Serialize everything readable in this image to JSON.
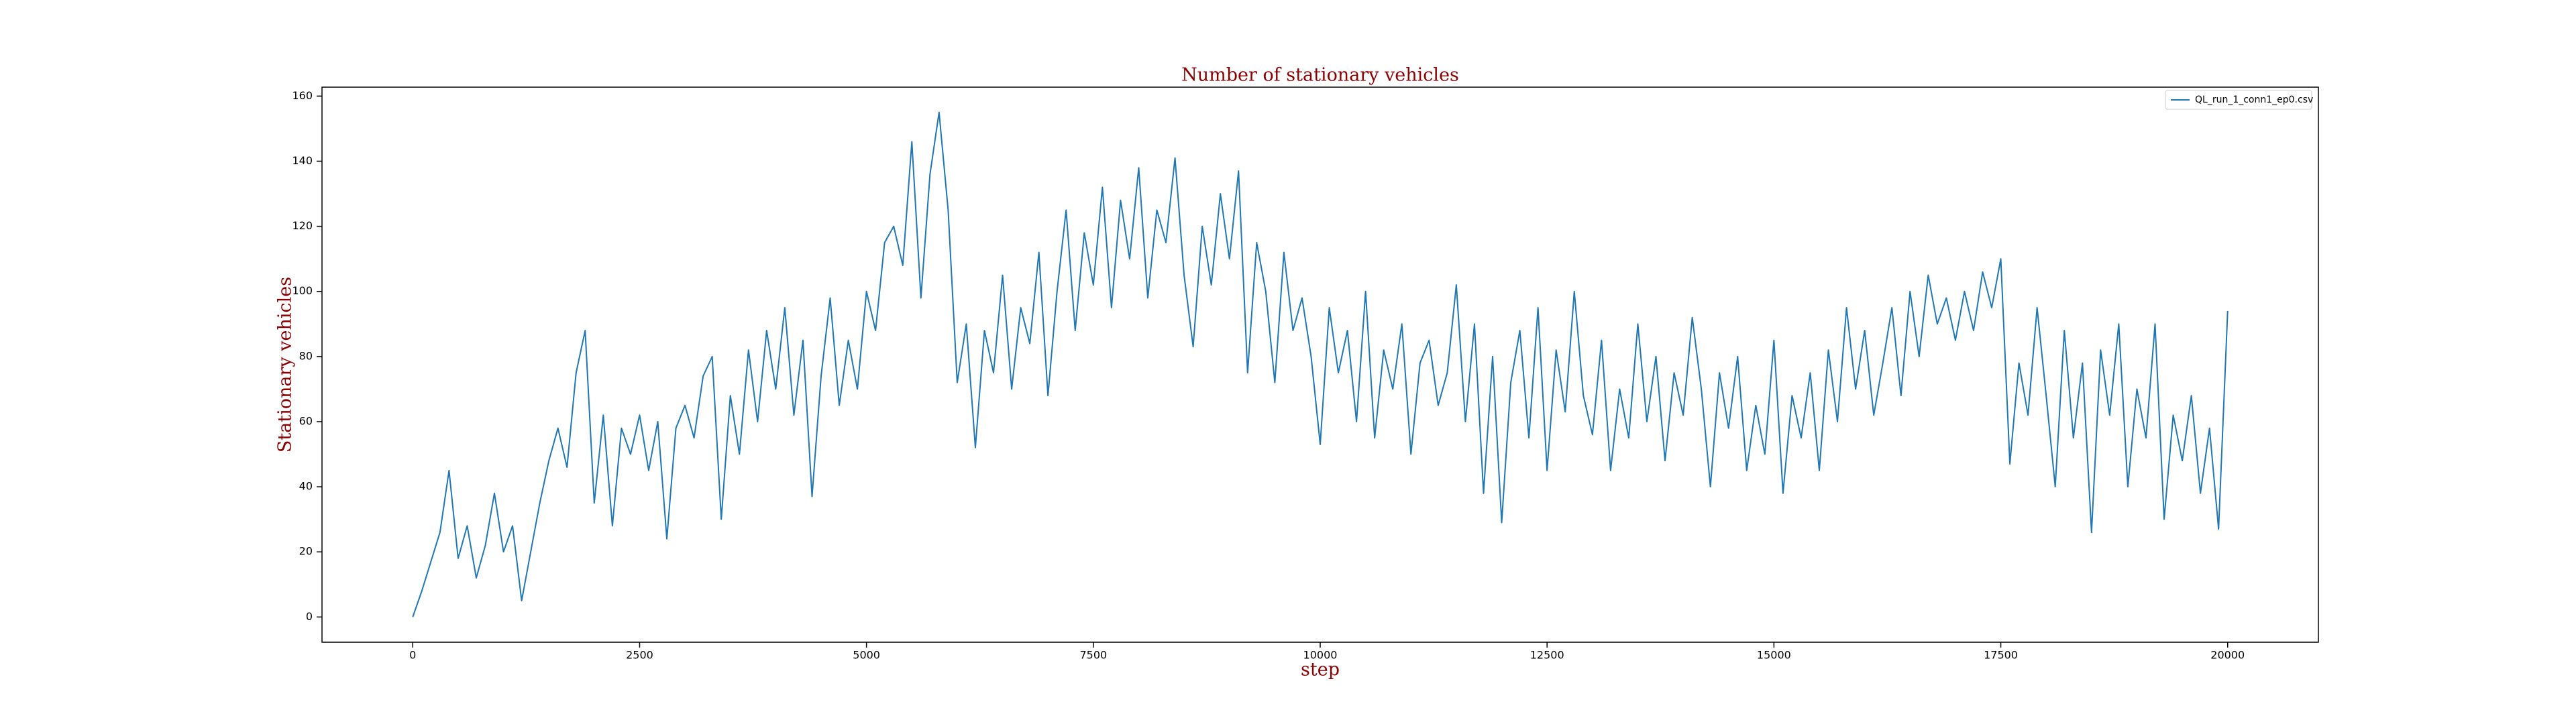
{
  "chart_data": {
    "type": "line",
    "title": "Number of stationary vehicles",
    "xlabel": "step",
    "ylabel": "Stationary vehicles",
    "legend": "upper right",
    "xlim": [
      -1000,
      21000
    ],
    "ylim": [
      -7.75,
      162.75
    ],
    "xticks": [
      0,
      2500,
      5000,
      7500,
      10000,
      12500,
      15000,
      17500,
      20000
    ],
    "yticks": [
      0,
      20,
      40,
      60,
      80,
      100,
      120,
      140,
      160
    ],
    "x": [
      0,
      100,
      200,
      300,
      400,
      500,
      600,
      700,
      800,
      900,
      1000,
      1100,
      1200,
      1300,
      1400,
      1500,
      1600,
      1700,
      1800,
      1900,
      2000,
      2100,
      2200,
      2300,
      2400,
      2500,
      2600,
      2700,
      2800,
      2900,
      3000,
      3100,
      3200,
      3300,
      3400,
      3500,
      3600,
      3700,
      3800,
      3900,
      4000,
      4100,
      4200,
      4300,
      4400,
      4500,
      4600,
      4700,
      4800,
      4900,
      5000,
      5100,
      5200,
      5300,
      5400,
      5500,
      5600,
      5700,
      5800,
      5900,
      6000,
      6100,
      6200,
      6300,
      6400,
      6500,
      6600,
      6700,
      6800,
      6900,
      7000,
      7100,
      7200,
      7300,
      7400,
      7500,
      7600,
      7700,
      7800,
      7900,
      8000,
      8100,
      8200,
      8300,
      8400,
      8500,
      8600,
      8700,
      8800,
      8900,
      9000,
      9100,
      9200,
      9300,
      9400,
      9500,
      9600,
      9700,
      9800,
      9900,
      10000,
      10100,
      10200,
      10300,
      10400,
      10500,
      10600,
      10700,
      10800,
      10900,
      11000,
      11100,
      11200,
      11300,
      11400,
      11500,
      11600,
      11700,
      11800,
      11900,
      12000,
      12100,
      12200,
      12300,
      12400,
      12500,
      12600,
      12700,
      12800,
      12900,
      13000,
      13100,
      13200,
      13300,
      13400,
      13500,
      13600,
      13700,
      13800,
      13900,
      14000,
      14100,
      14200,
      14300,
      14400,
      14500,
      14600,
      14700,
      14800,
      14900,
      15000,
      15100,
      15200,
      15300,
      15400,
      15500,
      15600,
      15700,
      15800,
      15900,
      16000,
      16100,
      16200,
      16300,
      16400,
      16500,
      16600,
      16700,
      16800,
      16900,
      17000,
      17100,
      17200,
      17300,
      17400,
      17500,
      17600,
      17700,
      17800,
      17900,
      18000,
      18100,
      18200,
      18300,
      18400,
      18500,
      18600,
      18700,
      18800,
      18900,
      19000,
      19100,
      19200,
      19300,
      19400,
      19500,
      19600,
      19700,
      19800,
      19900,
      20000
    ],
    "series": [
      {
        "name": "QL_run_1_conn1_ep0.csv",
        "color": "#1f77b4",
        "values": [
          0,
          8,
          17,
          26,
          45,
          18,
          28,
          12,
          22,
          38,
          20,
          28,
          5,
          20,
          35,
          48,
          58,
          46,
          75,
          88,
          35,
          62,
          28,
          58,
          50,
          62,
          45,
          60,
          24,
          58,
          65,
          55,
          74,
          80,
          30,
          68,
          50,
          82,
          60,
          88,
          70,
          95,
          62,
          85,
          37,
          74,
          98,
          65,
          85,
          70,
          100,
          88,
          115,
          120,
          108,
          146,
          98,
          136,
          155,
          125,
          72,
          90,
          52,
          88,
          75,
          105,
          70,
          95,
          84,
          112,
          68,
          100,
          125,
          88,
          118,
          102,
          132,
          95,
          128,
          110,
          138,
          98,
          125,
          115,
          141,
          105,
          83,
          120,
          102,
          130,
          110,
          137,
          75,
          115,
          100,
          72,
          112,
          88,
          98,
          80,
          53,
          95,
          75,
          88,
          60,
          100,
          55,
          82,
          70,
          90,
          50,
          78,
          85,
          65,
          75,
          102,
          60,
          90,
          38,
          80,
          29,
          72,
          88,
          55,
          95,
          45,
          82,
          63,
          100,
          68,
          56,
          85,
          45,
          70,
          55,
          90,
          60,
          80,
          48,
          75,
          62,
          92,
          70,
          40,
          75,
          58,
          80,
          45,
          65,
          50,
          85,
          38,
          68,
          55,
          75,
          45,
          82,
          60,
          95,
          70,
          88,
          62,
          78,
          95,
          68,
          100,
          80,
          105,
          90,
          98,
          85,
          100,
          88,
          106,
          95,
          110,
          47,
          78,
          62,
          95,
          68,
          40,
          88,
          55,
          78,
          26,
          82,
          62,
          90,
          40,
          70,
          55,
          90,
          30,
          62,
          48,
          68,
          38,
          58,
          27,
          94
        ]
      }
    ]
  }
}
